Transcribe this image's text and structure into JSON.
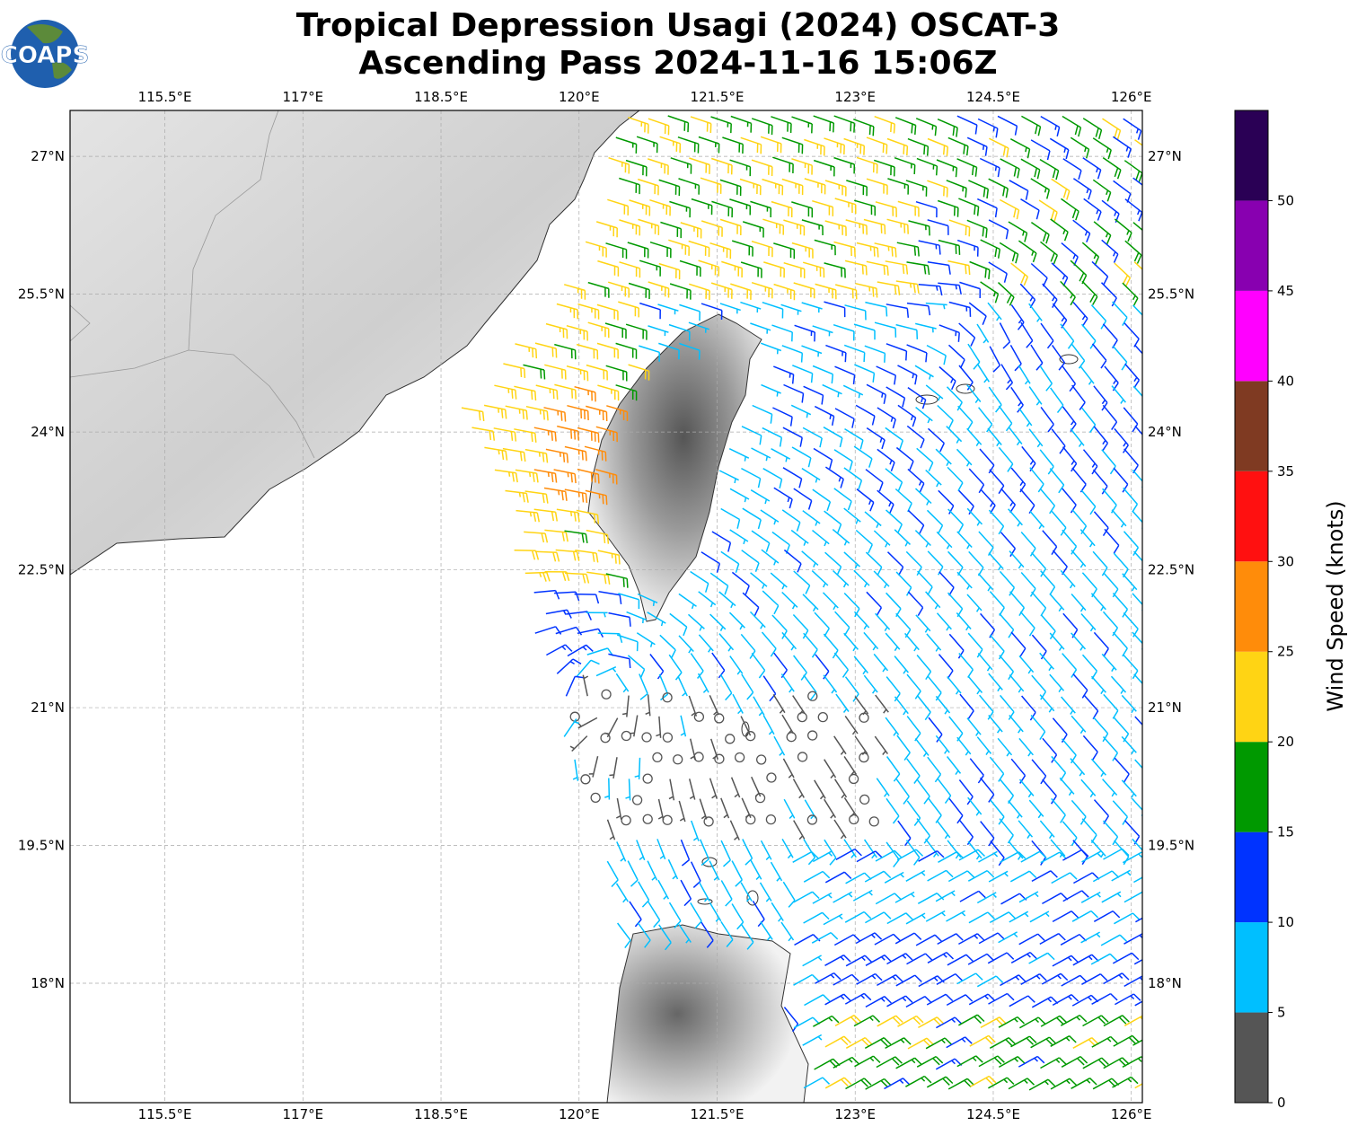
{
  "title": {
    "line1": "Tropical Depression Usagi (2024) OSCAT-3",
    "line2": "Ascending Pass 2024-11-16 15:06Z"
  },
  "logo": {
    "text": "COAPS"
  },
  "axes": {
    "lon_labels": [
      "115.5°E",
      "117°E",
      "118.5°E",
      "120°E",
      "121.5°E",
      "123°E",
      "124.5°E",
      "126°E"
    ],
    "lon_values": [
      115.5,
      117,
      118.5,
      120,
      121.5,
      123,
      124.5,
      126
    ],
    "lat_labels": [
      "27°N",
      "25.5°N",
      "24°N",
      "22.5°N",
      "21°N",
      "19.5°N",
      "18°N"
    ],
    "lat_values": [
      27,
      25.5,
      24,
      22.5,
      21,
      19.5,
      18
    ],
    "lon_range": [
      114.47,
      126.12
    ],
    "lat_range": [
      16.7,
      27.5
    ]
  },
  "colorbar": {
    "label": "Wind Speed (knots)",
    "tick_labels": [
      "0",
      "5",
      "10",
      "15",
      "20",
      "25",
      "30",
      "35",
      "40",
      "45",
      "50"
    ],
    "bins": [
      {
        "from": 0,
        "to": 5,
        "color": "#555555"
      },
      {
        "from": 5,
        "to": 10,
        "color": "#00bfff"
      },
      {
        "from": 10,
        "to": 15,
        "color": "#0033ff"
      },
      {
        "from": 15,
        "to": 20,
        "color": "#009900"
      },
      {
        "from": 20,
        "to": 25,
        "color": "#ffd414"
      },
      {
        "from": 25,
        "to": 30,
        "color": "#ff8c0a"
      },
      {
        "from": 30,
        "to": 35,
        "color": "#ff1010"
      },
      {
        "from": 35,
        "to": 40,
        "color": "#7f3a22"
      },
      {
        "from": 40,
        "to": 45,
        "color": "#ff00ff"
      },
      {
        "from": 45,
        "to": 50,
        "color": "#8800b0"
      },
      {
        "from": 50,
        "to": 55,
        "color": "#2a0055"
      }
    ]
  }
}
